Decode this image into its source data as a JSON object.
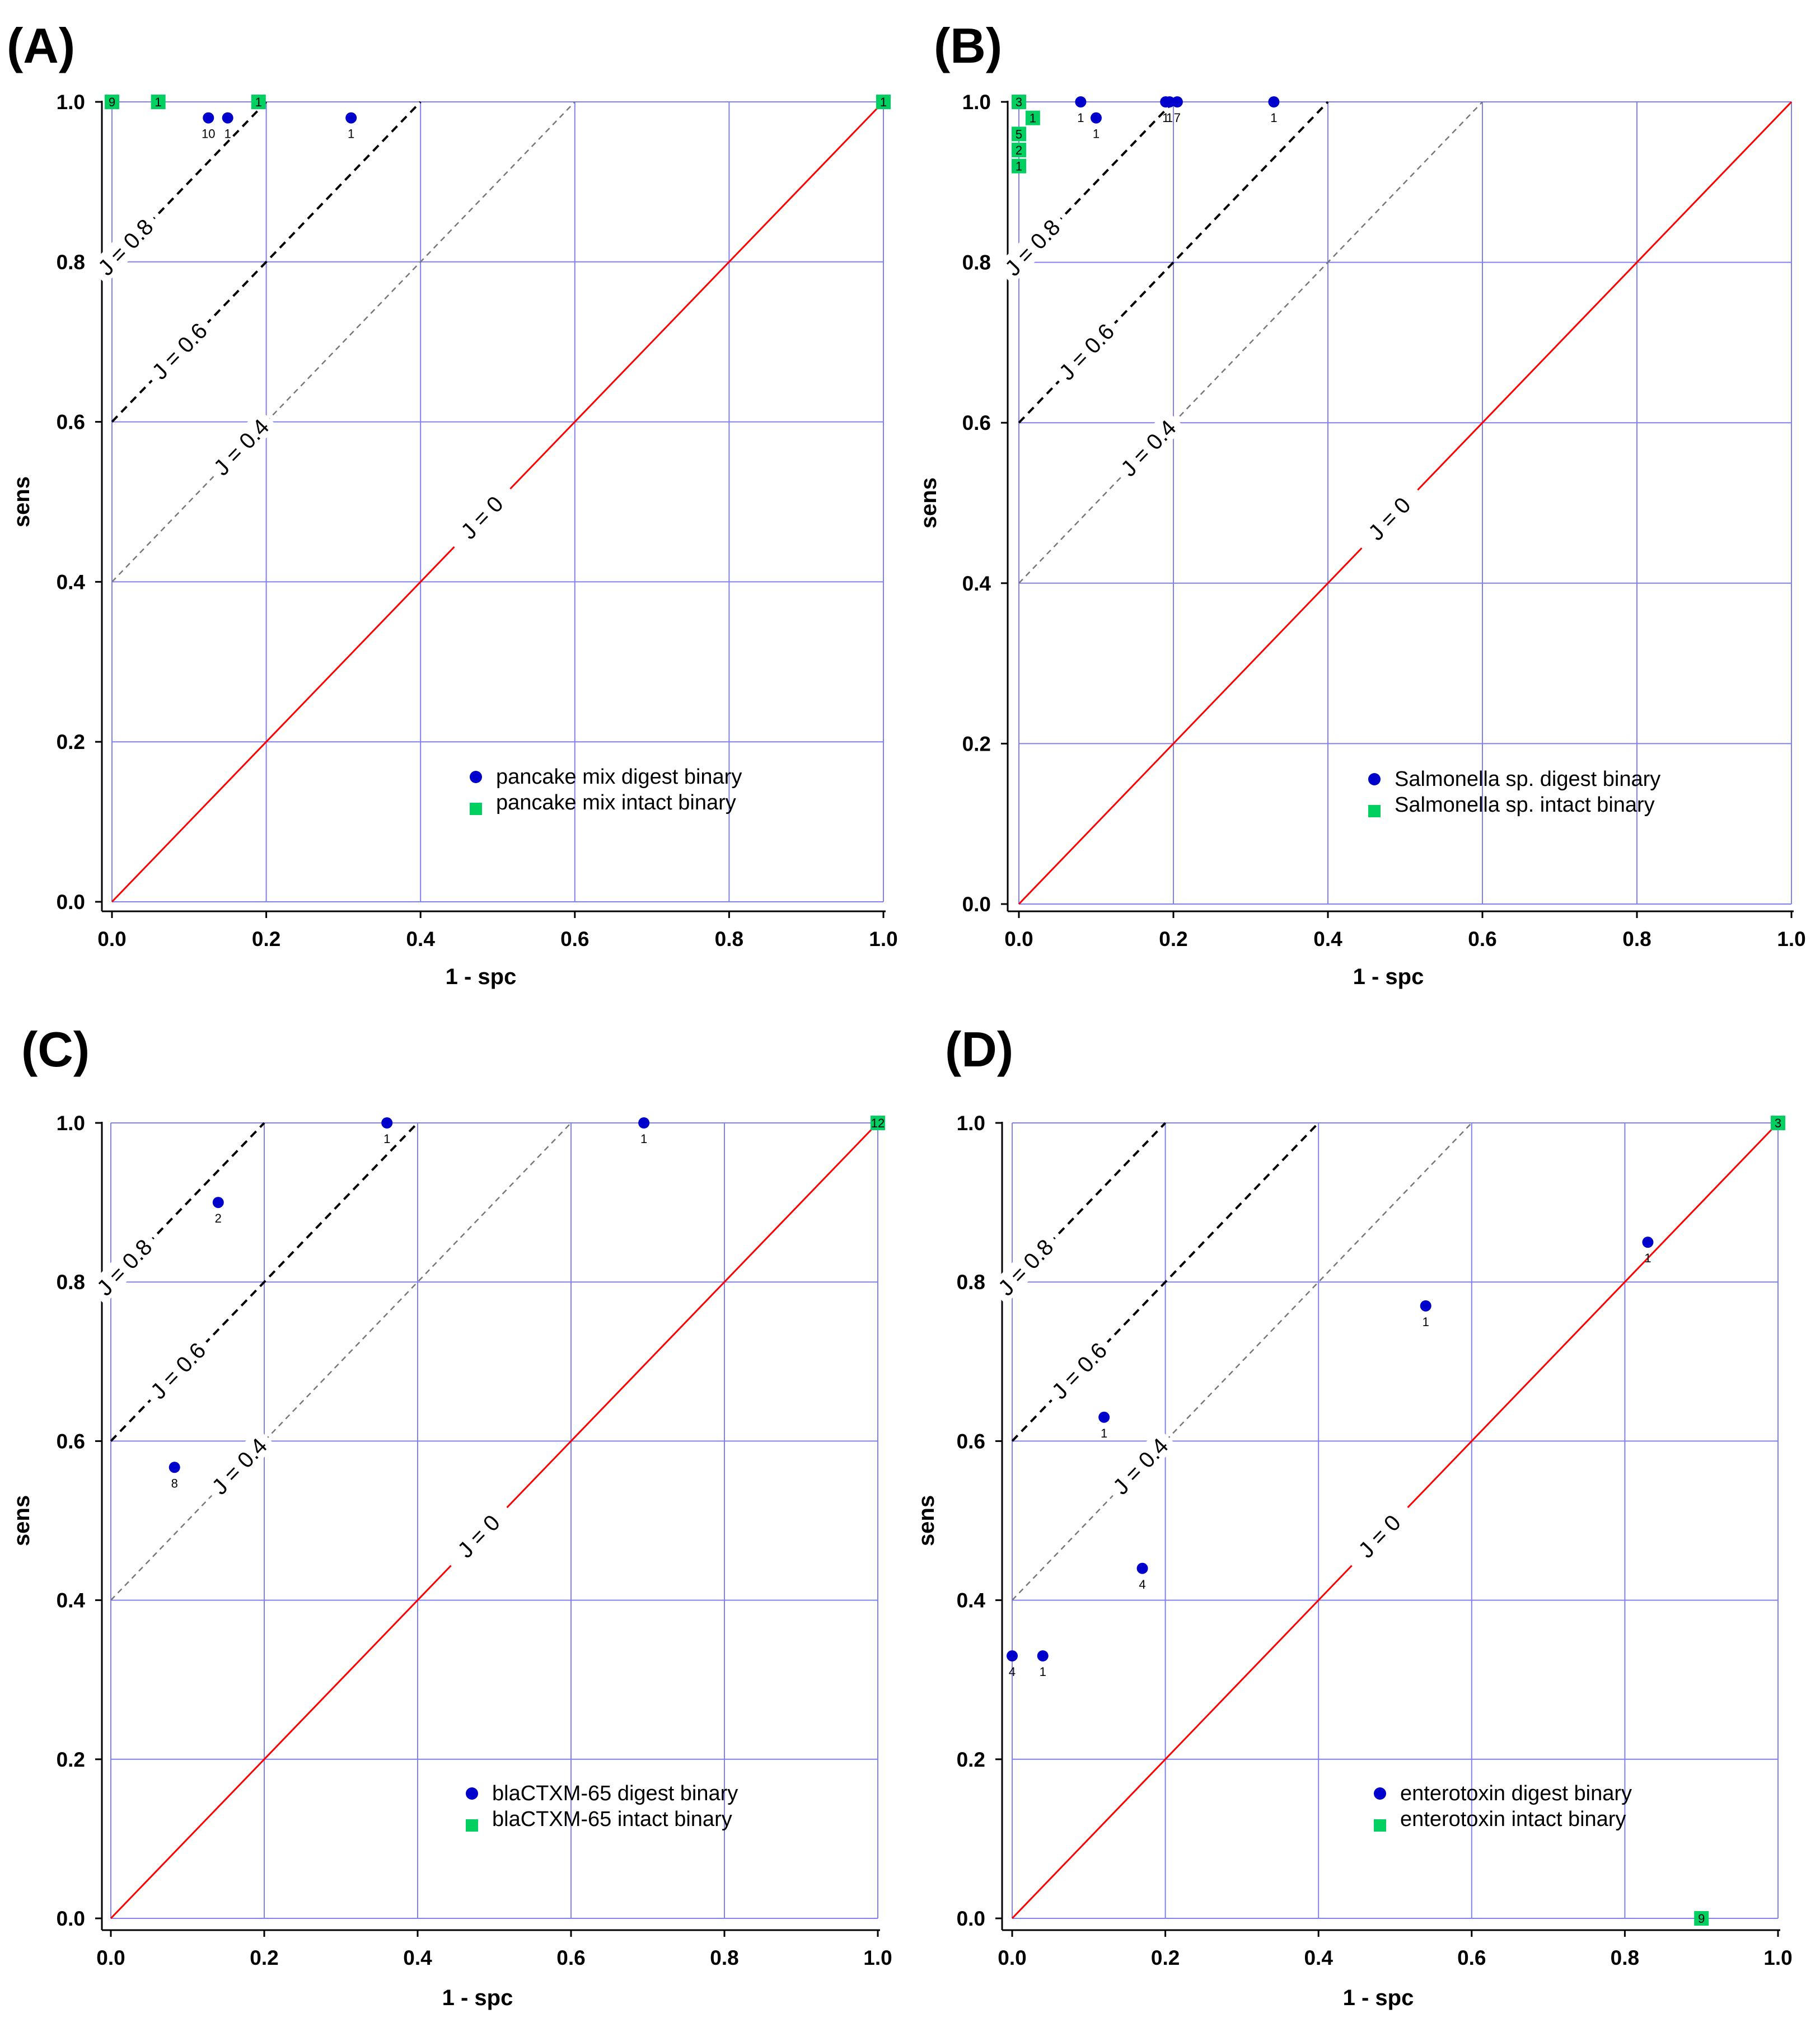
{
  "colors": {
    "grid": "#8080ee",
    "frame": "#000000",
    "diag_zero": "#ff0000",
    "j08": "#000000",
    "j06": "#000000",
    "j04": "#777777",
    "digest": "#0000cc",
    "intact": "#00d060"
  },
  "chart_data": [
    {
      "type": "scatter",
      "panel_label": "(A)",
      "xlabel": "1 - spc",
      "ylabel": "sens",
      "xlim": [
        0,
        1
      ],
      "ylim": [
        0,
        1
      ],
      "x_ticks": [
        "0.0",
        "0.2",
        "0.4",
        "0.6",
        "0.8",
        "1.0"
      ],
      "y_ticks": [
        "0.0",
        "0.2",
        "0.4",
        "0.6",
        "0.8",
        "1.0"
      ],
      "iso_lines": [
        {
          "J": 0.8,
          "label": "J = 0.8"
        },
        {
          "J": 0.6,
          "label": "J = 0.6"
        },
        {
          "J": 0.4,
          "label": "J = 0.4"
        },
        {
          "J": 0,
          "label": "J = 0"
        }
      ],
      "legend": [
        "pancake mix digest binary",
        "pancake mix intact binary"
      ],
      "digest": [
        {
          "x": 0.125,
          "y": 0.98,
          "n": "10"
        },
        {
          "x": 0.15,
          "y": 0.98,
          "n": "1"
        },
        {
          "x": 0.31,
          "y": 0.98,
          "n": "1"
        }
      ],
      "intact": [
        {
          "x": 0.0,
          "y": 1.0,
          "n": "9"
        },
        {
          "x": 0.06,
          "y": 1.0,
          "n": "1"
        },
        {
          "x": 0.19,
          "y": 1.0,
          "n": "1"
        },
        {
          "x": 1.0,
          "y": 1.0,
          "n": "1"
        }
      ]
    },
    {
      "type": "scatter",
      "panel_label": "(B)",
      "xlabel": "1 - spc",
      "ylabel": "sens",
      "xlim": [
        0,
        1
      ],
      "ylim": [
        0,
        1
      ],
      "x_ticks": [
        "0.0",
        "0.2",
        "0.4",
        "0.6",
        "0.8",
        "1.0"
      ],
      "y_ticks": [
        "0.0",
        "0.2",
        "0.4",
        "0.6",
        "0.8",
        "1.0"
      ],
      "iso_lines": [
        {
          "J": 0.8,
          "label": "J = 0.8"
        },
        {
          "J": 0.6,
          "label": "J = 0.6"
        },
        {
          "J": 0.4,
          "label": "J = 0.4"
        },
        {
          "J": 0,
          "label": "J = 0"
        }
      ],
      "legend": [
        "Salmonella sp. digest binary",
        "Salmonella sp. intact binary"
      ],
      "digest": [
        {
          "x": 0.08,
          "y": 1.0,
          "n": "1"
        },
        {
          "x": 0.1,
          "y": 0.98,
          "n": "1"
        },
        {
          "x": 0.19,
          "y": 1.0,
          "n": "1"
        },
        {
          "x": 0.195,
          "y": 1.0,
          "n": "1"
        },
        {
          "x": 0.205,
          "y": 1.0,
          "n": "7"
        },
        {
          "x": 0.33,
          "y": 1.0,
          "n": "1"
        }
      ],
      "intact": [
        {
          "x": 0.0,
          "y": 1.0,
          "n": "3"
        },
        {
          "x": 0.018,
          "y": 0.98,
          "n": "1"
        },
        {
          "x": 0.0,
          "y": 0.96,
          "n": "5"
        },
        {
          "x": 0.0,
          "y": 0.94,
          "n": "2"
        },
        {
          "x": 0.0,
          "y": 0.92,
          "n": "1"
        }
      ]
    },
    {
      "type": "scatter",
      "panel_label": "(C)",
      "xlabel": "1 - spc",
      "ylabel": "sens",
      "xlim": [
        0,
        1
      ],
      "ylim": [
        0,
        1
      ],
      "x_ticks": [
        "0.0",
        "0.2",
        "0.4",
        "0.6",
        "0.8",
        "1.0"
      ],
      "y_ticks": [
        "0.0",
        "0.2",
        "0.4",
        "0.6",
        "0.8",
        "1.0"
      ],
      "iso_lines": [
        {
          "J": 0.8,
          "label": "J = 0.8"
        },
        {
          "J": 0.6,
          "label": "J = 0.6"
        },
        {
          "J": 0.4,
          "label": "J = 0.4"
        },
        {
          "J": 0,
          "label": "J = 0"
        }
      ],
      "legend": [
        "blaCTXM-65 digest binary",
        "blaCTXM-65 intact binary"
      ],
      "digest": [
        {
          "x": 0.083,
          "y": 0.567,
          "n": "8"
        },
        {
          "x": 0.14,
          "y": 0.9,
          "n": "2"
        },
        {
          "x": 0.36,
          "y": 1.0,
          "n": "1"
        },
        {
          "x": 0.695,
          "y": 1.0,
          "n": "1"
        }
      ],
      "intact": [
        {
          "x": 1.0,
          "y": 1.0,
          "n": "12"
        }
      ]
    },
    {
      "type": "scatter",
      "panel_label": "(D)",
      "xlabel": "1 - spc",
      "ylabel": "sens",
      "xlim": [
        0,
        1
      ],
      "ylim": [
        0,
        1
      ],
      "x_ticks": [
        "0.0",
        "0.2",
        "0.4",
        "0.6",
        "0.8",
        "1.0"
      ],
      "y_ticks": [
        "0.0",
        "0.2",
        "0.4",
        "0.6",
        "0.8",
        "1.0"
      ],
      "iso_lines": [
        {
          "J": 0.8,
          "label": "J = 0.8"
        },
        {
          "J": 0.6,
          "label": "J = 0.6"
        },
        {
          "J": 0.4,
          "label": "J = 0.4"
        },
        {
          "J": 0,
          "label": "J = 0"
        }
      ],
      "legend": [
        "enterotoxin digest binary",
        "enterotoxin intact binary"
      ],
      "digest": [
        {
          "x": 0.0,
          "y": 0.33,
          "n": "4"
        },
        {
          "x": 0.04,
          "y": 0.33,
          "n": "1"
        },
        {
          "x": 0.12,
          "y": 0.63,
          "n": "1"
        },
        {
          "x": 0.17,
          "y": 0.44,
          "n": "4"
        },
        {
          "x": 0.54,
          "y": 0.77,
          "n": "1"
        },
        {
          "x": 0.83,
          "y": 0.85,
          "n": "1"
        }
      ],
      "intact": [
        {
          "x": 1.0,
          "y": 1.0,
          "n": "3"
        },
        {
          "x": 0.9,
          "y": 0.0,
          "n": "9"
        }
      ]
    }
  ]
}
